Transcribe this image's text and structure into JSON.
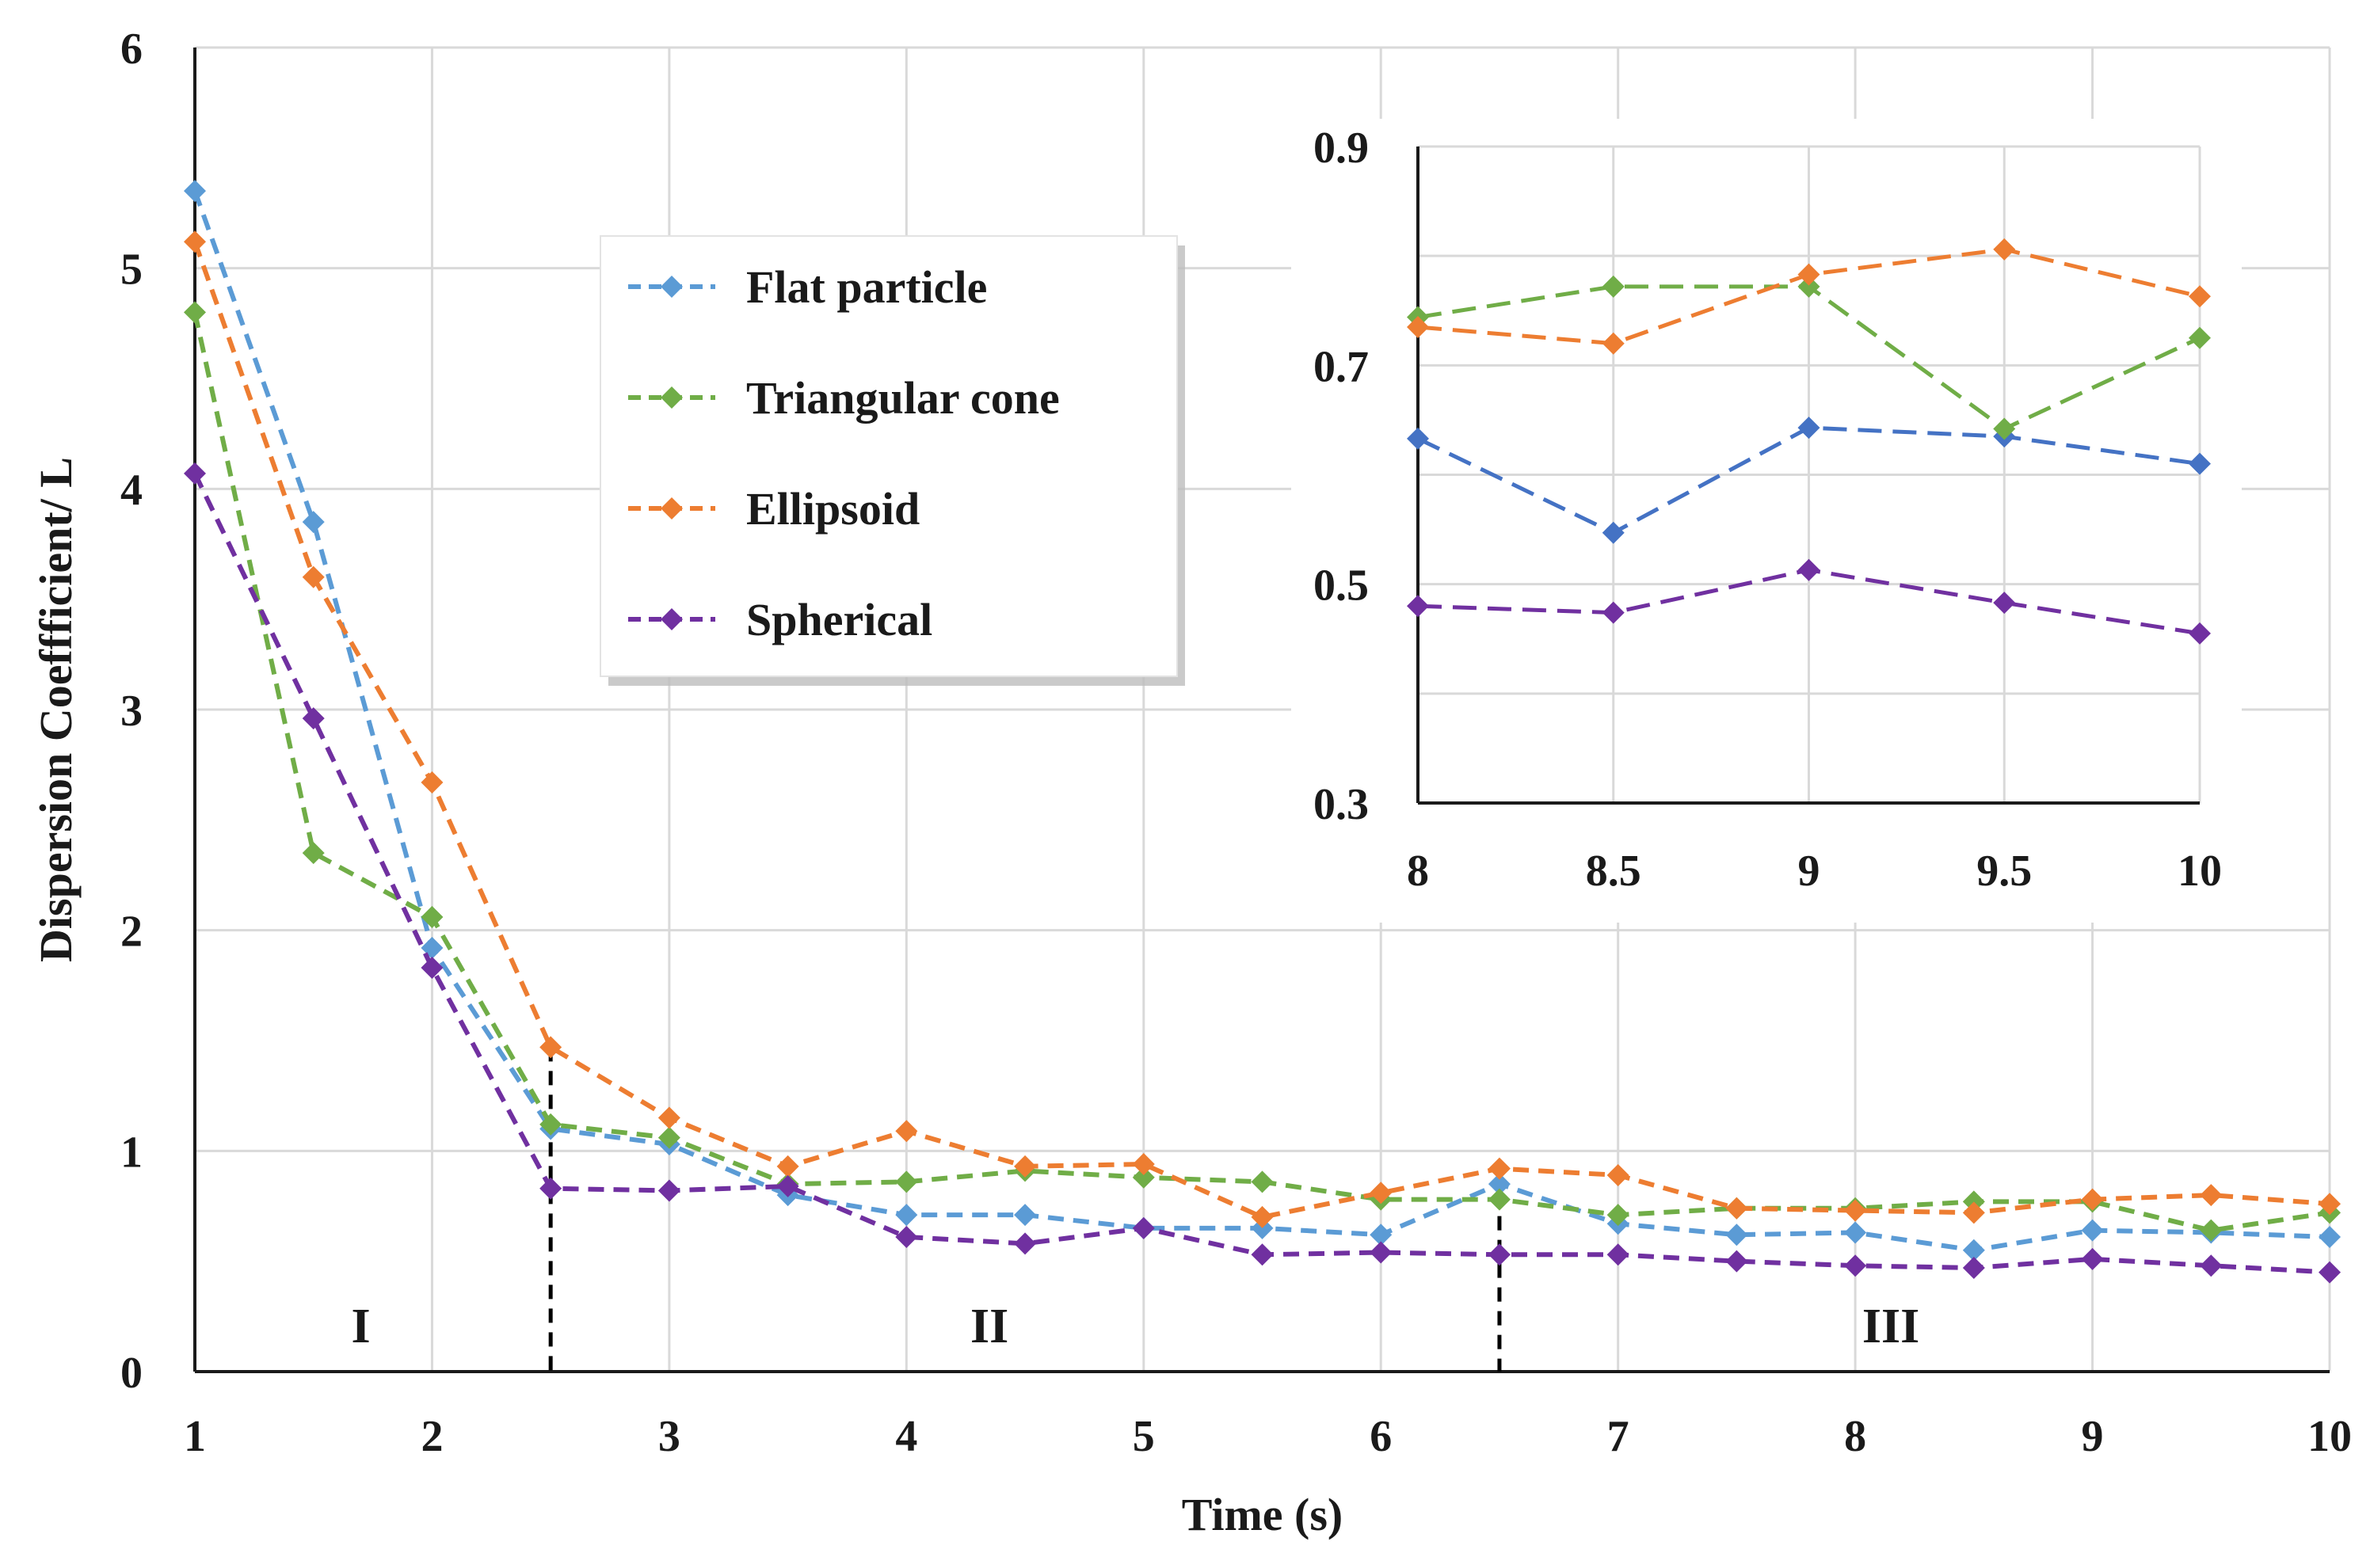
{
  "chart_data": [
    {
      "id": "main",
      "type": "line",
      "title": "",
      "xlabel": "Time (s)",
      "ylabel": "Dispersion Coeffficient/ L",
      "xlim": [
        1,
        10
      ],
      "ylim": [
        0,
        6
      ],
      "xticks": [
        1,
        2,
        3,
        4,
        5,
        6,
        7,
        8,
        9,
        10
      ],
      "yticks": [
        0,
        1,
        2,
        3,
        4,
        5,
        6
      ],
      "grid": true,
      "legend_position": "upper-center",
      "x": [
        1,
        1.5,
        2,
        2.5,
        3,
        3.5,
        4,
        4.5,
        5,
        5.5,
        6,
        6.5,
        7,
        7.5,
        8,
        8.5,
        9,
        9.5,
        10
      ],
      "series": [
        {
          "name": "Flat particle",
          "color": "#5B9BD5",
          "values": [
            5.35,
            3.85,
            1.92,
            1.1,
            1.03,
            0.8,
            0.71,
            0.71,
            0.65,
            0.65,
            0.62,
            0.85,
            0.67,
            0.62,
            0.63,
            0.55,
            0.64,
            0.63,
            0.61
          ]
        },
        {
          "name": "Triangular cone",
          "color": "#70AD47",
          "values": [
            4.8,
            2.35,
            2.06,
            1.12,
            1.06,
            0.85,
            0.86,
            0.91,
            0.88,
            0.86,
            0.78,
            0.78,
            0.71,
            0.74,
            0.74,
            0.77,
            0.77,
            0.64,
            0.72
          ]
        },
        {
          "name": "Ellipsoid",
          "color": "#ED7D31",
          "values": [
            5.12,
            3.6,
            2.67,
            1.47,
            1.15,
            0.93,
            1.09,
            0.93,
            0.94,
            0.7,
            0.81,
            0.92,
            0.89,
            0.74,
            0.73,
            0.72,
            0.78,
            0.8,
            0.76
          ]
        },
        {
          "name": "Spherical",
          "color": "#7030A0",
          "values": [
            4.07,
            2.96,
            1.83,
            0.83,
            0.82,
            0.84,
            0.61,
            0.58,
            0.65,
            0.53,
            0.54,
            0.53,
            0.53,
            0.5,
            0.48,
            0.47,
            0.51,
            0.48,
            0.45
          ]
        }
      ],
      "phase_dividers": [
        2.5,
        6.5
      ],
      "phase_labels": [
        {
          "text": "I",
          "x": 1.7
        },
        {
          "text": "II",
          "x": 4.35
        },
        {
          "text": "III",
          "x": 8.15
        }
      ]
    },
    {
      "id": "inset",
      "type": "line",
      "title": "",
      "xlim": [
        8,
        10
      ],
      "ylim": [
        0.3,
        0.9
      ],
      "xticks": [
        8,
        8.5,
        9,
        9.5,
        10
      ],
      "xtick_labels": [
        "8",
        "8.5",
        "9",
        "9.5",
        "10"
      ],
      "yticks": [
        0.3,
        0.5,
        0.7,
        0.9
      ],
      "ytick_labels": [
        "0.3",
        "0.5",
        "0.7",
        "0.9"
      ],
      "grid": true,
      "x": [
        8,
        8.5,
        9,
        9.5,
        10
      ],
      "series": [
        {
          "name": "Flat particle",
          "color": "#4472C4",
          "values": [
            0.633,
            0.547,
            0.643,
            0.635,
            0.61
          ]
        },
        {
          "name": "Triangular cone",
          "color": "#70AD47",
          "values": [
            0.744,
            0.772,
            0.772,
            0.642,
            0.725
          ]
        },
        {
          "name": "Ellipsoid",
          "color": "#ED7D31",
          "values": [
            0.735,
            0.72,
            0.783,
            0.806,
            0.763
          ]
        },
        {
          "name": "Spherical",
          "color": "#7030A0",
          "values": [
            0.48,
            0.474,
            0.513,
            0.483,
            0.455
          ]
        }
      ]
    }
  ]
}
